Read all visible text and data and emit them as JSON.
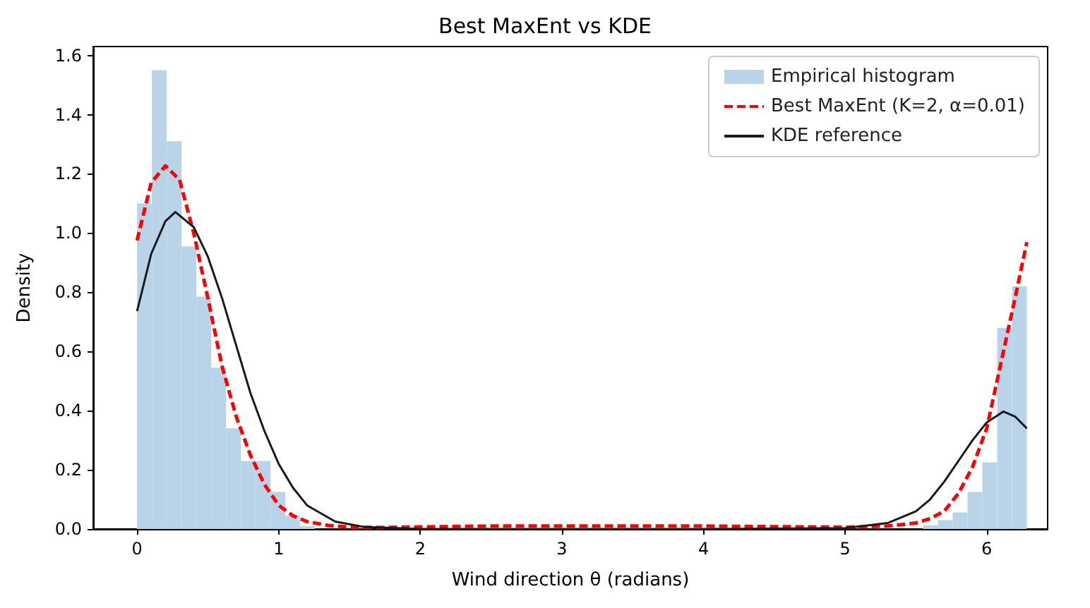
{
  "chart_data": {
    "type": "histogram",
    "title": "Best MaxEnt vs KDE",
    "xlabel": "Wind direction θ (radians)",
    "ylabel": "Density",
    "bins": [
      0,
      0.1047,
      0.2094,
      0.3142,
      0.4189,
      0.5236,
      0.6283,
      0.733,
      0.8378,
      0.9425,
      1.0472,
      1.1519,
      1.2566,
      1.3614,
      1.4661,
      1.5708,
      1.6755,
      1.7802,
      1.885,
      1.9897,
      2.0944,
      2.1991,
      2.3038,
      2.4086,
      2.5133,
      2.618,
      2.7227,
      2.8274,
      2.9322,
      3.0369,
      3.1416,
      3.2463,
      3.351,
      3.4558,
      3.5605,
      3.6652,
      3.7699,
      3.8746,
      3.9794,
      4.0841,
      4.1888,
      4.2935,
      4.3982,
      4.5029,
      4.6077,
      4.7124,
      4.8171,
      4.9218,
      5.0265,
      5.1313,
      5.236,
      5.3407,
      5.4454,
      5.5501,
      5.6549,
      5.7596,
      5.8643,
      5.969,
      6.0737,
      6.1785,
      6.2832
    ],
    "series": [
      {
        "name": "Empirical histogram",
        "color": "#b9d4e8",
        "values": [
          1.1,
          1.55,
          1.31,
          0.955,
          0.785,
          0.545,
          0.34,
          0.23,
          0.23,
          0.125,
          0.045,
          0.01,
          0,
          0,
          0,
          0,
          0,
          0,
          0,
          0,
          0,
          0,
          0,
          0,
          0,
          0,
          0,
          0,
          0,
          0,
          0,
          0,
          0,
          0,
          0,
          0,
          0,
          0,
          0,
          0,
          0,
          0,
          0,
          0,
          0,
          0,
          0,
          0,
          0,
          0,
          0,
          0,
          0,
          0.013,
          0.03,
          0.056,
          0.125,
          0.225,
          0.68,
          0.82
        ]
      },
      {
        "name": "Best MaxEnt (K=2, α=0.01)",
        "type": "line",
        "color": "#ff0000",
        "line_style": "dashed",
        "x": [
          0,
          0.1,
          0.2,
          0.3,
          0.4,
          0.5,
          0.6,
          0.7,
          0.8,
          0.9,
          1.0,
          1.1,
          1.2,
          1.35,
          1.5,
          1.75,
          2.0,
          2.5,
          3.0,
          3.5,
          4.0,
          4.5,
          5.0,
          5.3,
          5.5,
          5.6,
          5.7,
          5.8,
          5.9,
          6.0,
          6.1,
          6.2,
          6.2832
        ],
        "values": [
          0.975,
          1.17,
          1.227,
          1.18,
          1.0,
          0.78,
          0.55,
          0.38,
          0.25,
          0.15,
          0.08,
          0.045,
          0.025,
          0.012,
          0.006,
          0.005,
          0.007,
          0.01,
          0.01,
          0.01,
          0.01,
          0.008,
          0.006,
          0.01,
          0.02,
          0.035,
          0.06,
          0.12,
          0.21,
          0.34,
          0.56,
          0.78,
          0.969
        ]
      },
      {
        "name": "KDE reference",
        "type": "line",
        "color": "#1a1a1a",
        "line_style": "solid",
        "x": [
          0,
          0.1,
          0.2,
          0.27,
          0.4,
          0.5,
          0.6,
          0.7,
          0.8,
          0.9,
          1.0,
          1.1,
          1.2,
          1.4,
          1.6,
          2.0,
          3.0,
          4.0,
          5.0,
          5.3,
          5.5,
          5.6,
          5.7,
          5.8,
          5.9,
          6.0,
          6.117,
          6.2,
          6.2832
        ],
        "values": [
          0.736,
          0.93,
          1.04,
          1.071,
          1.02,
          0.92,
          0.78,
          0.62,
          0.46,
          0.33,
          0.22,
          0.14,
          0.08,
          0.025,
          0.007,
          0,
          0,
          0,
          0.003,
          0.02,
          0.06,
          0.1,
          0.16,
          0.23,
          0.3,
          0.36,
          0.397,
          0.38,
          0.34
        ]
      }
    ],
    "xlim": [
      -0.31,
      6.43
    ],
    "xticks": [
      0,
      1,
      2,
      3,
      4,
      5,
      6
    ],
    "ylim": [
      0,
      1.63
    ],
    "yticks": [
      {
        "value": 0,
        "label": "0.0"
      },
      {
        "value": 0.2,
        "label": "0.2"
      },
      {
        "value": 0.4,
        "label": "0.4"
      },
      {
        "value": 0.6,
        "label": "0.6"
      },
      {
        "value": 0.8,
        "label": "0.8"
      },
      {
        "value": 1.0,
        "label": "1.0"
      },
      {
        "value": 1.2,
        "label": "1.2"
      },
      {
        "value": 1.4,
        "label": "1.4"
      },
      {
        "value": 1.6,
        "label": "1.6"
      }
    ],
    "legend": "top right",
    "grid": false
  }
}
